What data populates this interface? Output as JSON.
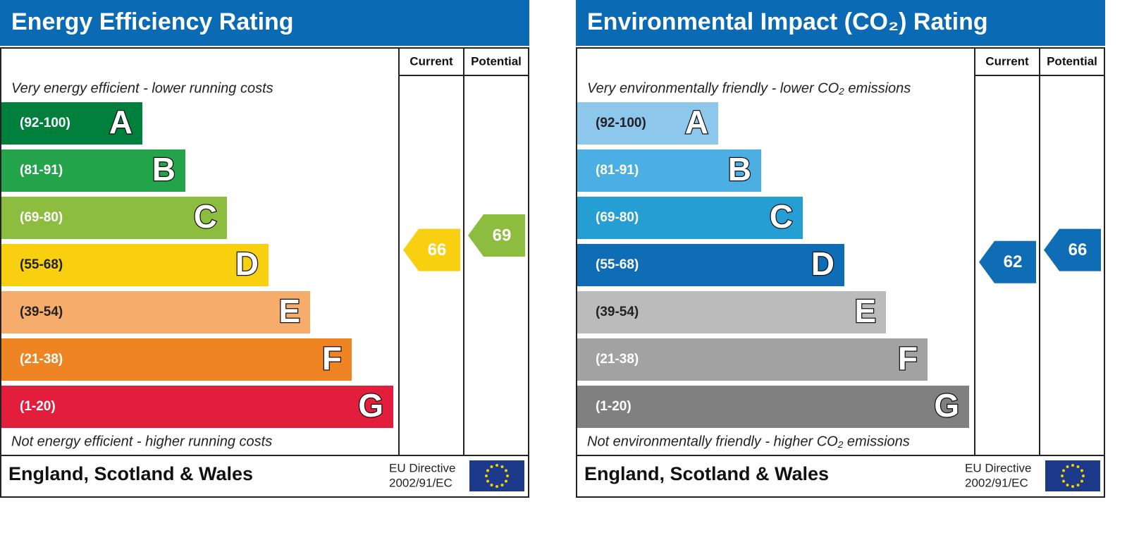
{
  "panels": [
    {
      "title": "Energy Efficiency Rating",
      "columns": [
        "Current",
        "Potential"
      ],
      "top_note": "Very energy efficient - lower running costs",
      "bands": [
        {
          "range": "(92-100)",
          "letter": "A",
          "color": "#007f3d"
        },
        {
          "range": "(81-91)",
          "letter": "B",
          "color": "#23a34a"
        },
        {
          "range": "(69-80)",
          "letter": "C",
          "color": "#8cbd3f"
        },
        {
          "range": "(55-68)",
          "letter": "D",
          "color": "#f9d010"
        },
        {
          "range": "(39-54)",
          "letter": "E",
          "color": "#f6ad6c"
        },
        {
          "range": "(21-38)",
          "letter": "F",
          "color": "#ef8422"
        },
        {
          "range": "(1-20)",
          "letter": "G",
          "color": "#e31d3c"
        }
      ],
      "bottom_note": "Not energy efficient - higher running costs",
      "current": 66,
      "potential": 69,
      "footer": {
        "region": "England, Scotland & Wales",
        "directive": [
          "EU Directive",
          "2002/91/EC"
        ]
      }
    },
    {
      "title": "Environmental Impact (CO₂) Rating",
      "columns": [
        "Current",
        "Potential"
      ],
      "top_note": "Very environmentally friendly - lower CO₂ emissions",
      "bands": [
        {
          "range": "(92-100)",
          "letter": "A",
          "color": "#8dc7ec"
        },
        {
          "range": "(81-91)",
          "letter": "B",
          "color": "#4bafe3"
        },
        {
          "range": "(69-80)",
          "letter": "C",
          "color": "#259fd3"
        },
        {
          "range": "(55-68)",
          "letter": "D",
          "color": "#0f6db6"
        },
        {
          "range": "(39-54)",
          "letter": "E",
          "color": "#bbbbbb"
        },
        {
          "range": "(21-38)",
          "letter": "F",
          "color": "#a2a2a2"
        },
        {
          "range": "(1-20)",
          "letter": "G",
          "color": "#808080"
        }
      ],
      "bottom_note": "Not environmentally friendly - higher CO₂ emissions",
      "current": 62,
      "potential": 66,
      "footer": {
        "region": "England, Scotland & Wales",
        "directive": [
          "EU Directive",
          "2002/91/EC"
        ]
      }
    }
  ]
}
